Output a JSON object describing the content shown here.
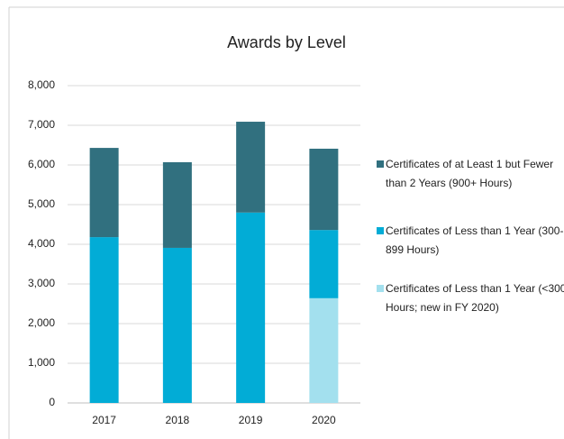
{
  "chart_data": {
    "type": "stacked_bar",
    "title": "Awards by Level",
    "categories": [
      "2017",
      "2018",
      "2019",
      "2020"
    ],
    "series": [
      {
        "name": "Certificates of Less than 1 Year (<300 Hours; new in FY 2020)",
        "color": "#a3e0ee",
        "values": [
          null,
          null,
          null,
          2640
        ]
      },
      {
        "name": "Certificates of Less than 1 Year (300-899 Hours)",
        "color": "#02acd6",
        "values": [
          4180,
          3910,
          4800,
          1720
        ]
      },
      {
        "name": "Certificates of at Least 1 but Fewer than 2 Years (900+ Hours)",
        "color": "#31707f",
        "values": [
          2250,
          2160,
          2290,
          2050
        ]
      }
    ],
    "ylim": [
      0,
      8000
    ],
    "yticks": [
      0,
      {
        "value": 1000,
        "label": "1,000"
      },
      {
        "value": 2000,
        "label": "2,000"
      },
      {
        "value": 3000,
        "label": "3,000"
      },
      {
        "value": 4000,
        "label": "4,000"
      },
      {
        "value": 5000,
        "label": "5,000"
      },
      {
        "value": 6000,
        "label": "6,000"
      },
      {
        "value": 7000,
        "label": "7,000"
      },
      {
        "value": 8000,
        "label": "8,000"
      }
    ],
    "grid": true,
    "legend": "right"
  }
}
